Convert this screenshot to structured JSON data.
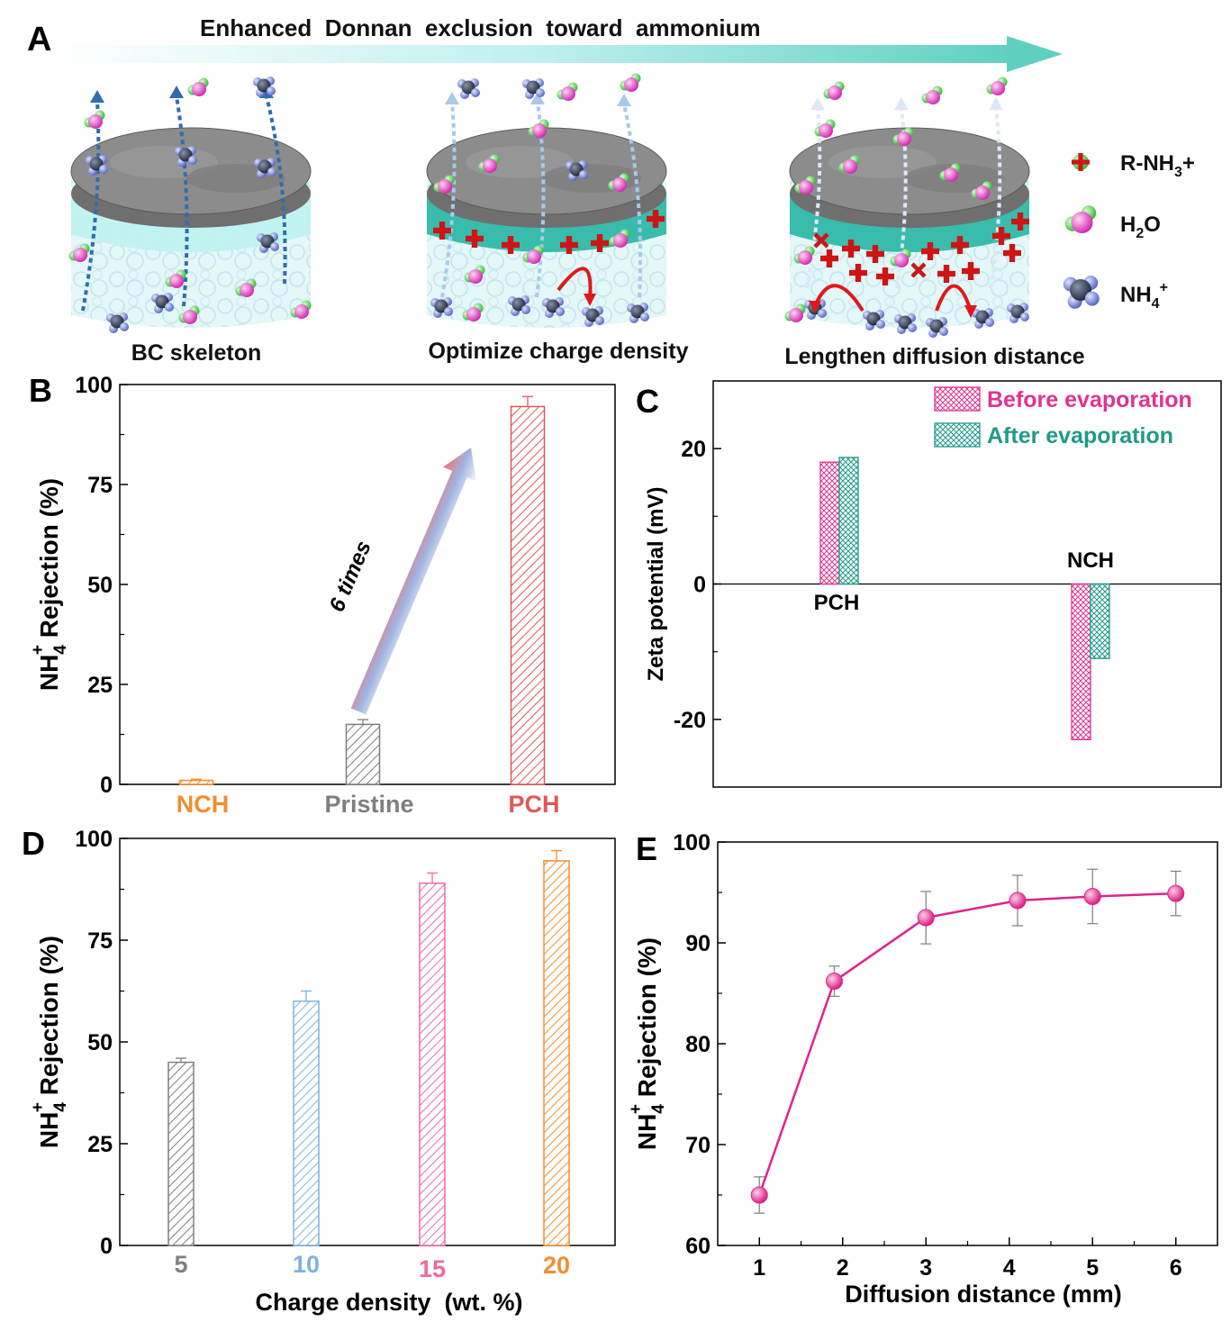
{
  "panel_a": {
    "letter": "A",
    "banner": "Enhanced  Donnan  exclusion  toward  ammonium",
    "stages": [
      "BC skeleton",
      "Optimize charge density",
      "Lengthen diffusion distance"
    ],
    "legend": [
      {
        "icon": "plus-charge-icon",
        "label": "R-NH",
        "sub": "3",
        "suffix": "+"
      },
      {
        "icon": "water-molecule-icon",
        "label": "H",
        "sub": "2",
        "suffix": "O"
      },
      {
        "icon": "ammonium-molecule-icon",
        "label": "NH",
        "sub": "4",
        "sup": "+"
      }
    ]
  },
  "chart_data": [
    {
      "panel": "B",
      "type": "bar",
      "categories": [
        "NCH",
        "Pristine",
        "PCH"
      ],
      "category_colors": [
        "#f28e2b",
        "#7f7f7f",
        "#e15759"
      ],
      "values": [
        1,
        15,
        94.5
      ],
      "errors": [
        0.3,
        1.2,
        2.5
      ],
      "ylim": [
        0,
        100
      ],
      "yticks": [
        0,
        25,
        50,
        75,
        100
      ],
      "ylabel": {
        "main": "NH",
        "sub": "4",
        "sup": "+",
        "rest": " Rejection (%)"
      },
      "annotation": "6 times"
    },
    {
      "panel": "C",
      "type": "bar",
      "categories": [
        "PCH",
        "NCH"
      ],
      "series": [
        {
          "name": "Before evaporation",
          "color": "#e0338f",
          "values": [
            18,
            -23
          ]
        },
        {
          "name": "After evaporation",
          "color": "#1f9a8a",
          "values": [
            18.7,
            -11
          ]
        }
      ],
      "ylim": [
        -30,
        30
      ],
      "yticks": [
        -20,
        0,
        20
      ],
      "yticklabels": [
        "-20",
        "0",
        "20"
      ],
      "ylabel": "Zeta potential (mV)",
      "legend": "top-right"
    },
    {
      "panel": "D",
      "type": "bar",
      "categories": [
        "5",
        "10",
        "15",
        "20"
      ],
      "category_colors": [
        "#7f7f7f",
        "#7fb2e0",
        "#f06b9a",
        "#f28e2b"
      ],
      "values": [
        45,
        60,
        89,
        94.5
      ],
      "errors": [
        1,
        2.5,
        2.5,
        2.5
      ],
      "ylim": [
        0,
        100
      ],
      "yticks": [
        0,
        25,
        50,
        75,
        100
      ],
      "xlabel": "Charge density  (wt. %)",
      "ylabel": {
        "main": "NH",
        "sub": "4",
        "sup": "+",
        "rest": " Rejection (%)"
      }
    },
    {
      "panel": "E",
      "type": "line",
      "x": [
        1,
        1.9,
        3,
        4.1,
        5,
        6
      ],
      "xticks": [
        1,
        2,
        3,
        4,
        5,
        6
      ],
      "y": [
        65,
        86.2,
        92.5,
        94.2,
        94.6,
        94.9
      ],
      "errors": [
        1.8,
        1.5,
        2.6,
        2.5,
        2.7,
        2.2
      ],
      "xlim": [
        0.5,
        6.5
      ],
      "ylim": [
        60,
        100
      ],
      "yticks": [
        60,
        70,
        80,
        90,
        100
      ],
      "color": "#e0238c",
      "xlabel": "Diffusion distance (mm)",
      "ylabel": {
        "main": "NH",
        "sub": "4",
        "sup": "+",
        "rest": " Rejection (%)"
      }
    }
  ],
  "panel_letters": [
    "B",
    "C",
    "D",
    "E"
  ]
}
